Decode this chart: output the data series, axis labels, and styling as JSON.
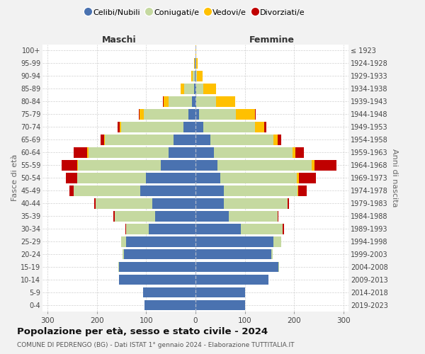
{
  "age_groups": [
    "0-4",
    "5-9",
    "10-14",
    "15-19",
    "20-24",
    "25-29",
    "30-34",
    "35-39",
    "40-44",
    "45-49",
    "50-54",
    "55-59",
    "60-64",
    "65-69",
    "70-74",
    "75-79",
    "80-84",
    "85-89",
    "90-94",
    "95-99",
    "100+"
  ],
  "birth_years_right": [
    "2019-2023",
    "2014-2018",
    "2009-2013",
    "2004-2008",
    "1999-2003",
    "1994-1998",
    "1989-1993",
    "1984-1988",
    "1979-1983",
    "1974-1978",
    "1969-1973",
    "1964-1968",
    "1959-1963",
    "1954-1958",
    "1949-1953",
    "1944-1948",
    "1939-1943",
    "1934-1938",
    "1929-1933",
    "1924-1928",
    "≤ 1923"
  ],
  "colors": {
    "celibi": "#4a72b0",
    "coniugati": "#c5d9a0",
    "vedovi": "#ffc000",
    "divorziati": "#c00000"
  },
  "male_celibi": [
    103,
    106,
    155,
    155,
    145,
    140,
    95,
    82,
    88,
    112,
    100,
    70,
    55,
    45,
    25,
    15,
    7,
    3,
    1,
    1,
    0
  ],
  "male_coniugati": [
    0,
    0,
    0,
    1,
    3,
    10,
    45,
    82,
    115,
    135,
    140,
    168,
    162,
    138,
    125,
    90,
    48,
    20,
    5,
    1,
    0
  ],
  "male_vedovi": [
    0,
    0,
    0,
    0,
    0,
    0,
    0,
    0,
    0,
    0,
    0,
    1,
    2,
    2,
    4,
    8,
    10,
    7,
    2,
    1,
    0
  ],
  "male_divorziati": [
    0,
    0,
    0,
    0,
    0,
    0,
    2,
    2,
    2,
    8,
    22,
    32,
    28,
    8,
    4,
    2,
    1,
    0,
    0,
    0,
    0
  ],
  "female_celibi": [
    100,
    100,
    148,
    168,
    153,
    158,
    92,
    68,
    58,
    58,
    50,
    45,
    38,
    30,
    16,
    7,
    2,
    1,
    0,
    0,
    0
  ],
  "female_coniugati": [
    0,
    0,
    0,
    1,
    3,
    15,
    85,
    98,
    128,
    148,
    155,
    190,
    158,
    128,
    105,
    75,
    40,
    15,
    3,
    1,
    0
  ],
  "female_vedovi": [
    0,
    0,
    0,
    0,
    0,
    0,
    0,
    0,
    0,
    2,
    4,
    6,
    6,
    8,
    18,
    38,
    38,
    25,
    12,
    4,
    1
  ],
  "female_divorziati": [
    0,
    0,
    0,
    0,
    0,
    0,
    2,
    2,
    4,
    18,
    35,
    45,
    17,
    8,
    4,
    2,
    1,
    0,
    0,
    0,
    0
  ],
  "xlim": 310,
  "title": "Popolazione per età, sesso e stato civile - 2024",
  "subtitle": "COMUNE DI PEDRENGO (BG) - Dati ISTAT 1° gennaio 2024 - Elaborazione TUTTITALIA.IT",
  "label_maschi": "Maschi",
  "label_femmine": "Femmine",
  "ylabel_left": "Fasce di età",
  "ylabel_right": "Anni di nascita",
  "legend_labels": [
    "Celibi/Nubili",
    "Coniugati/e",
    "Vedovi/e",
    "Divorziati/e"
  ],
  "bg_color": "#f2f2f2",
  "plot_bg_color": "#ffffff"
}
